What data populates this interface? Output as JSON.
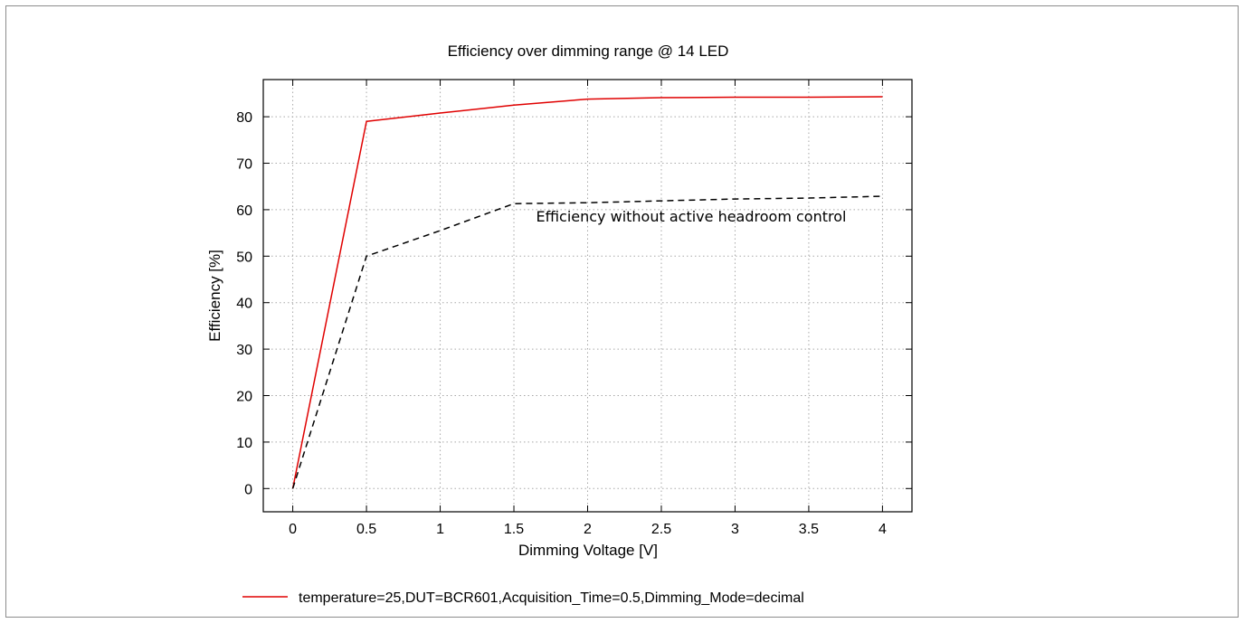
{
  "chart_data": {
    "type": "line",
    "title": "Efficiency over dimming range @ 14 LED",
    "xlabel": "Dimming Voltage [V]",
    "ylabel": "Efficiency [%]",
    "xlim": [
      -0.2,
      4.2
    ],
    "ylim": [
      -5,
      88
    ],
    "xticks": [
      0,
      0.5,
      1,
      1.5,
      2,
      2.5,
      3,
      3.5,
      4
    ],
    "xtick_labels": [
      "0",
      "0.5",
      "1",
      "1.5",
      "2",
      "2.5",
      "3",
      "3.5",
      "4"
    ],
    "yticks": [
      0,
      10,
      20,
      30,
      40,
      50,
      60,
      70,
      80
    ],
    "ytick_labels": [
      "0",
      "10",
      "20",
      "30",
      "40",
      "50",
      "60",
      "70",
      "80"
    ],
    "grid": true,
    "legend_position": "bottom",
    "series": [
      {
        "name": "temperature=25,DUT=BCR601,Acquisition_Time=0.5,Dimming_Mode=decimal",
        "color": "#e00000",
        "style": "solid",
        "x": [
          0,
          0.5,
          1,
          1.5,
          2,
          2.5,
          3,
          3.5,
          4
        ],
        "y": [
          0,
          79,
          80.8,
          82.5,
          83.8,
          84.1,
          84.2,
          84.2,
          84.3
        ]
      },
      {
        "name": "",
        "color": "#000000",
        "style": "dashed",
        "x": [
          0,
          0.5,
          1,
          1.5,
          2,
          2.5,
          3,
          3.5,
          4
        ],
        "y": [
          0,
          50,
          55.5,
          61.3,
          61.5,
          61.9,
          62.3,
          62.5,
          62.9
        ]
      }
    ],
    "annotations": [
      {
        "text": "Efficiency without active headroom control",
        "x": 1.65,
        "y": 57.5
      }
    ]
  }
}
